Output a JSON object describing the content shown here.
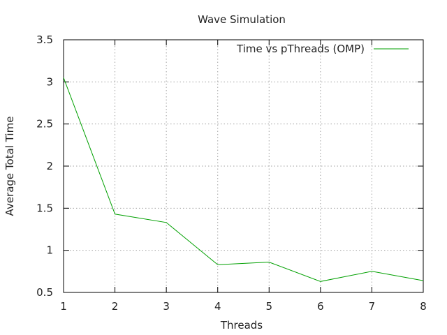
{
  "chart_data": {
    "type": "line",
    "title": "Wave Simulation",
    "xlabel": "Threads",
    "ylabel": "Average Total Time",
    "x": [
      1,
      2,
      3,
      4,
      5,
      6,
      7,
      8
    ],
    "xlim": [
      1,
      8
    ],
    "ylim": [
      0.5,
      3.5
    ],
    "xticks": [
      "1",
      "2",
      "3",
      "4",
      "5",
      "6",
      "7",
      "8"
    ],
    "yticks": [
      "0.5",
      "1",
      "1.5",
      "2",
      "2.5",
      "3",
      "3.5"
    ],
    "grid": true,
    "legend_position": "top-right",
    "series": [
      {
        "name": "Time vs pThreads (OMP)",
        "color": "#00a000",
        "values": [
          3.05,
          1.43,
          1.33,
          0.83,
          0.86,
          0.63,
          0.75,
          0.64
        ]
      }
    ]
  }
}
